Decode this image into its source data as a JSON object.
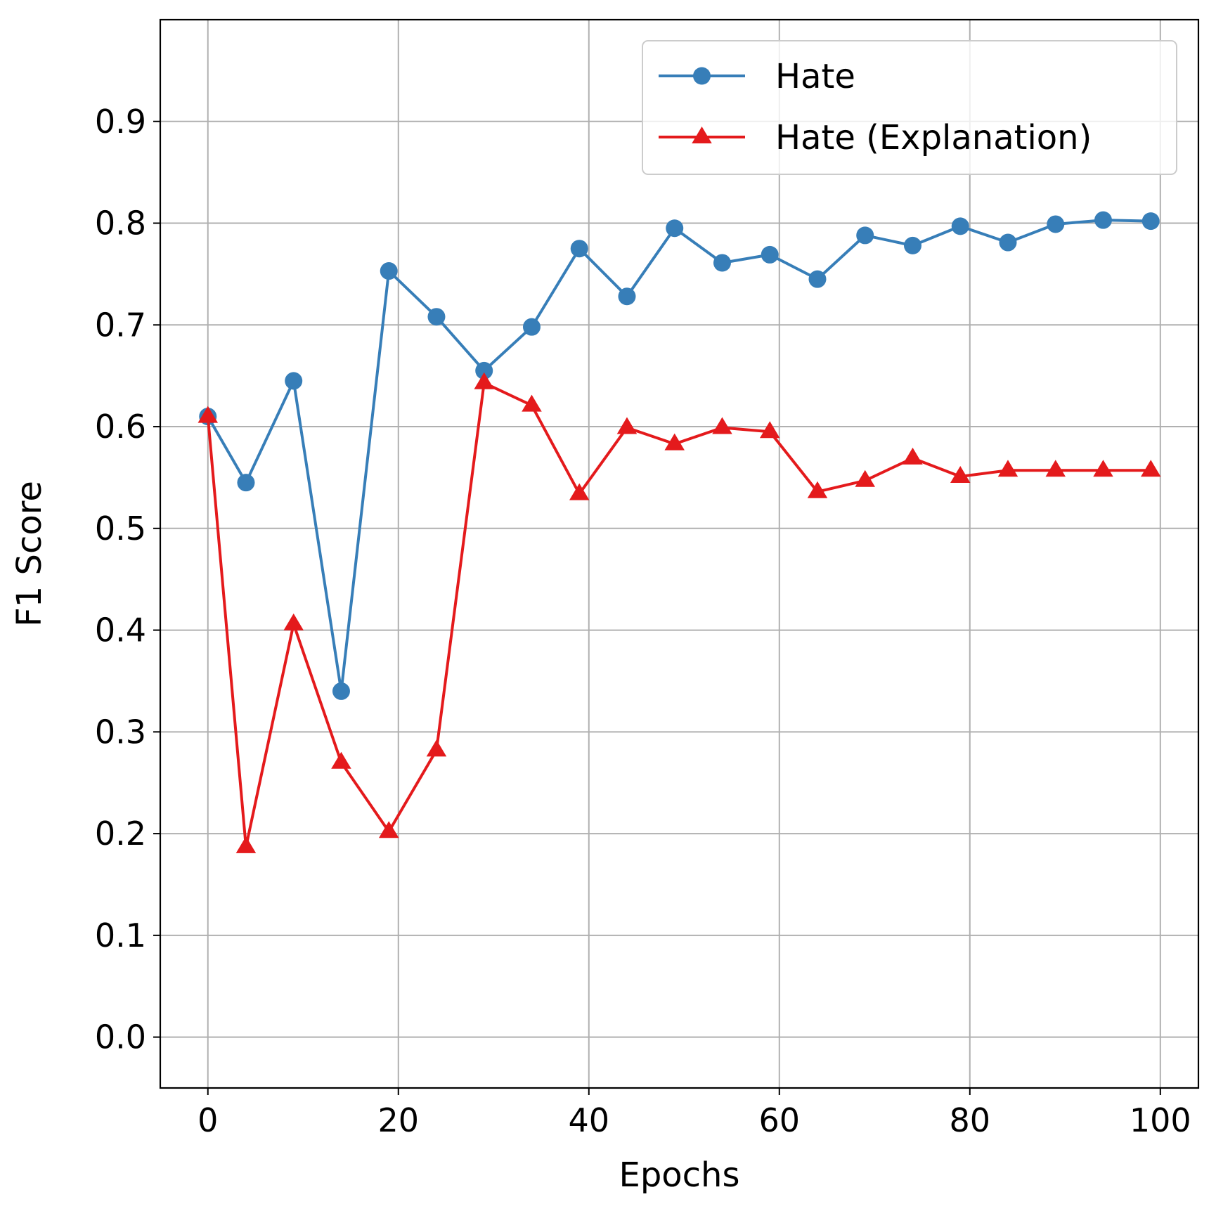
{
  "chart_data": {
    "type": "line",
    "title": "",
    "xlabel": "Epochs",
    "ylabel": "F1 Score",
    "xlim": [
      -5,
      104
    ],
    "ylim": [
      -0.05,
      1.0
    ],
    "xticks": [
      "0",
      "20",
      "40",
      "60",
      "80",
      "100"
    ],
    "xtick_values": [
      0,
      20,
      40,
      60,
      80,
      100
    ],
    "yticks": [
      "0.0",
      "0.1",
      "0.2",
      "0.3",
      "0.4",
      "0.5",
      "0.6",
      "0.7",
      "0.8",
      "0.9"
    ],
    "ytick_values": [
      0.0,
      0.1,
      0.2,
      0.3,
      0.4,
      0.5,
      0.6,
      0.7,
      0.8,
      0.9
    ],
    "grid": true,
    "legend_position": "top-right",
    "x": [
      0,
      4,
      9,
      14,
      19,
      24,
      29,
      34,
      39,
      44,
      49,
      54,
      59,
      64,
      69,
      74,
      79,
      84,
      89,
      94,
      99
    ],
    "series": [
      {
        "name": "Hate",
        "color": "#377eb8",
        "marker": "circle",
        "values": [
          0.61,
          0.545,
          0.645,
          0.34,
          0.753,
          0.708,
          0.655,
          0.698,
          0.775,
          0.728,
          0.795,
          0.761,
          0.769,
          0.745,
          0.788,
          0.778,
          0.797,
          0.781,
          0.799,
          0.803,
          0.802
        ]
      },
      {
        "name": "Hate (Explanation)",
        "color": "#e41a1c",
        "marker": "triangle",
        "values": [
          0.61,
          0.187,
          0.406,
          0.27,
          0.202,
          0.282,
          0.643,
          0.621,
          0.534,
          0.599,
          0.583,
          0.599,
          0.595,
          0.536,
          0.547,
          0.569,
          0.551,
          0.557,
          0.557,
          0.557,
          0.557
        ]
      }
    ]
  }
}
